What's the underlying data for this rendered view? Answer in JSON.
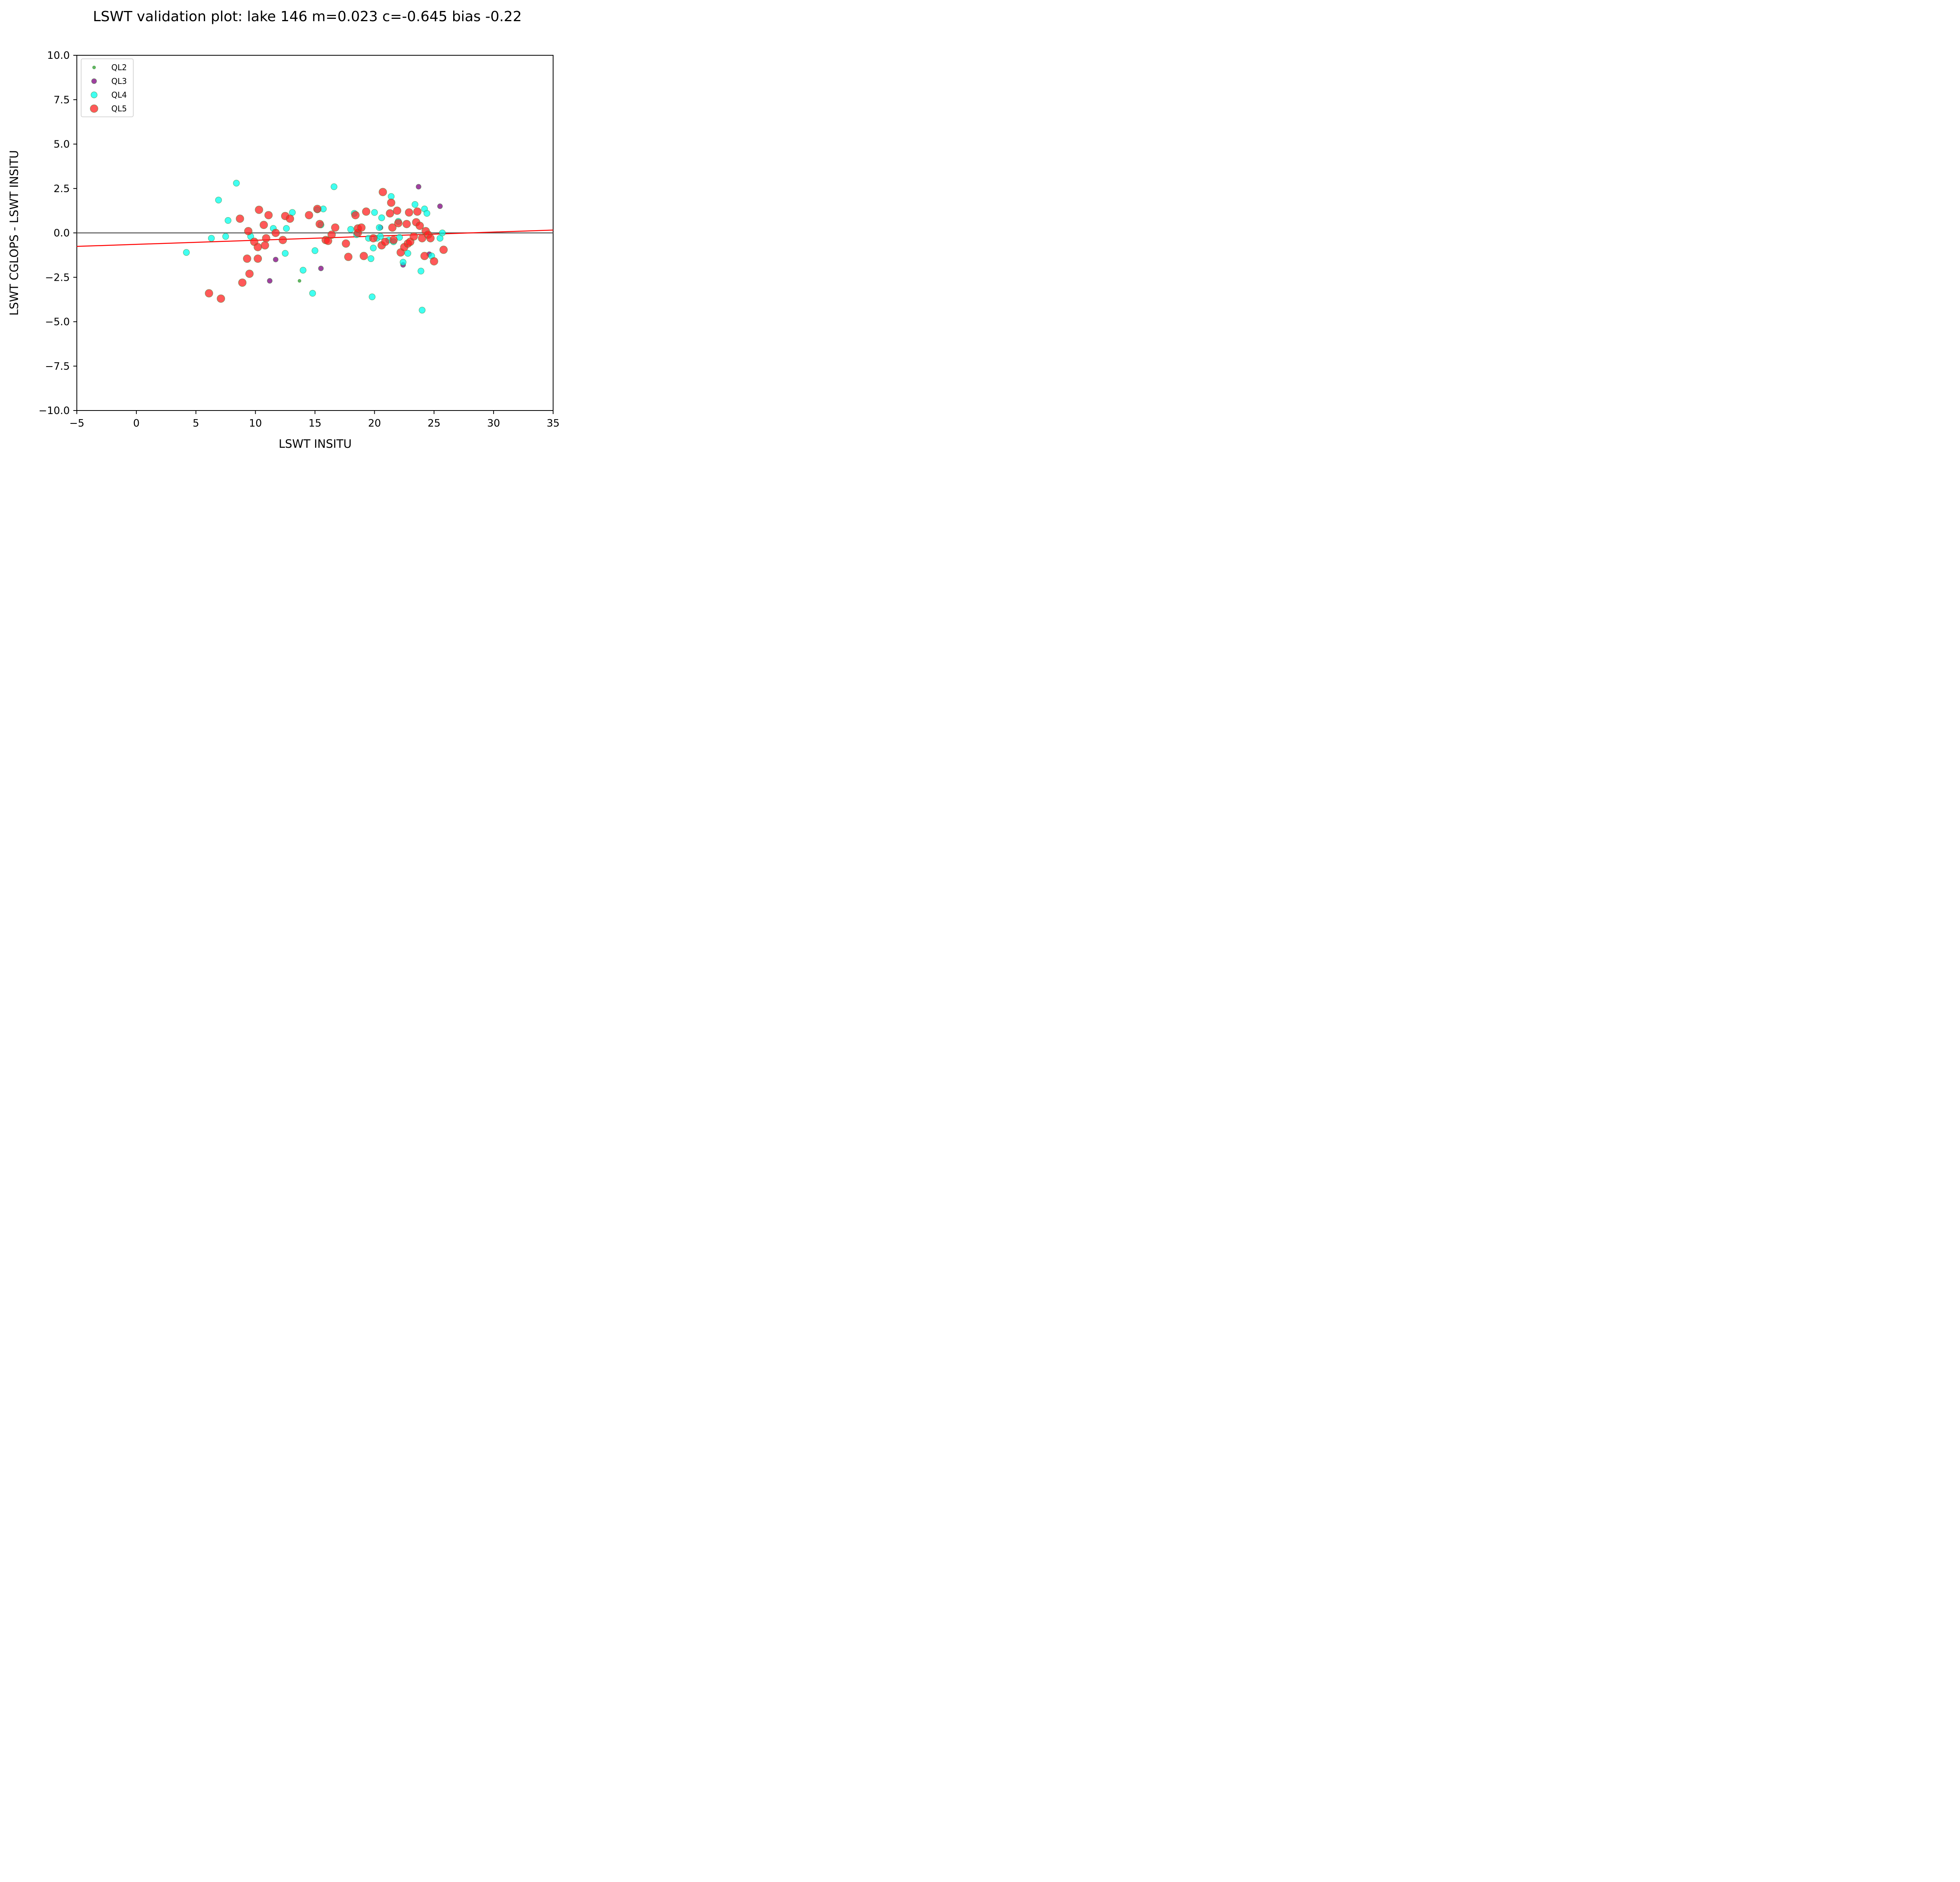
{
  "chart_data": {
    "type": "scatter",
    "title": "LSWT validation plot: lake 146 m=0.023 c=-0.645 bias -0.22",
    "xlabel": "LSWT INSITU",
    "ylabel": "LSWT CGLOPS - LSWT INSITU",
    "xlim": [
      -5,
      35
    ],
    "ylim": [
      -10,
      10
    ],
    "xticks": [
      -5,
      0,
      5,
      10,
      15,
      20,
      25,
      30,
      35
    ],
    "yticks": [
      -10,
      -7.5,
      -5,
      -2.5,
      0,
      2.5,
      5,
      7.5,
      10
    ],
    "xtick_labels": [
      "−5",
      "0",
      "5",
      "10",
      "15",
      "20",
      "25",
      "30",
      "35"
    ],
    "ytick_labels": [
      "−10.0",
      "−7.5",
      "−5.0",
      "−2.5",
      "0.0",
      "2.5",
      "5.0",
      "7.5",
      "10.0"
    ],
    "grid": false,
    "legend_position": "upper-left",
    "zero_line": {
      "y": 0,
      "color": "#555555"
    },
    "fit_line": {
      "m": 0.023,
      "c": -0.645,
      "color": "#ff0000"
    },
    "series": [
      {
        "name": "QL2",
        "color": "#2ca02c",
        "x": [
          13.7
        ],
        "y": [
          -2.7
        ]
      },
      {
        "name": "QL3",
        "color": "#800080",
        "x": [
          11.2,
          11.7,
          15.5,
          20.5,
          22.4,
          23.7,
          24.6,
          25.5
        ],
        "y": [
          -2.7,
          -1.5,
          -2.0,
          0.3,
          -1.8,
          2.6,
          -1.2,
          1.5
        ]
      },
      {
        "name": "QL4",
        "color": "#00ffee",
        "x": [
          4.2,
          6.3,
          6.9,
          7.5,
          7.7,
          8.4,
          9.6,
          11.5,
          12.5,
          12.6,
          13.1,
          14.0,
          14.8,
          15.0,
          15.2,
          15.5,
          15.7,
          16.6,
          18.0,
          18.3,
          18.5,
          19.5,
          19.7,
          19.8,
          19.9,
          20.0,
          20.2,
          20.4,
          20.5,
          20.6,
          21.2,
          21.4,
          21.6,
          22.0,
          22.1,
          22.4,
          22.8,
          23.4,
          23.9,
          24.0,
          24.2,
          24.4,
          24.8,
          25.5,
          25.7
        ],
        "y": [
          -1.1,
          -0.3,
          1.85,
          -0.2,
          0.7,
          2.8,
          -0.2,
          0.25,
          -1.15,
          0.25,
          1.15,
          -2.1,
          -3.4,
          -1.0,
          1.3,
          0.45,
          1.35,
          2.6,
          0.2,
          1.1,
          -0.1,
          -0.3,
          -1.45,
          -3.6,
          -0.85,
          1.15,
          -0.3,
          0.3,
          -0.2,
          0.85,
          -0.4,
          2.05,
          -0.5,
          0.65,
          -0.25,
          -1.65,
          -1.15,
          1.6,
          -2.15,
          -4.35,
          1.35,
          1.1,
          -1.3,
          -0.3,
          0.0
        ]
      },
      {
        "name": "QL5",
        "color": "#ff2222",
        "x": [
          6.1,
          7.1,
          8.7,
          8.9,
          9.3,
          9.4,
          9.5,
          9.9,
          10.2,
          10.2,
          10.3,
          10.7,
          10.8,
          10.9,
          11.1,
          11.7,
          12.3,
          12.5,
          12.9,
          14.5,
          15.2,
          15.4,
          15.9,
          16.1,
          16.4,
          16.7,
          17.6,
          17.8,
          18.4,
          18.6,
          18.6,
          18.9,
          19.1,
          19.3,
          19.9,
          20.6,
          20.7,
          20.9,
          21.3,
          21.4,
          21.5,
          21.6,
          21.9,
          22.0,
          22.2,
          22.5,
          22.7,
          22.8,
          22.9,
          23.0,
          23.3,
          23.5,
          23.6,
          23.8,
          24.0,
          24.2,
          24.3,
          24.5,
          24.7,
          25.0,
          25.8
        ],
        "y": [
          -3.4,
          -3.7,
          0.8,
          -2.8,
          -1.45,
          0.1,
          -2.3,
          -0.5,
          -0.8,
          -1.45,
          1.3,
          0.45,
          -0.7,
          -0.3,
          1.0,
          0.0,
          -0.4,
          0.95,
          0.8,
          1.0,
          1.35,
          0.5,
          -0.4,
          -0.45,
          -0.1,
          0.3,
          -0.6,
          -1.35,
          1.0,
          0.0,
          0.25,
          0.3,
          -1.3,
          1.2,
          -0.3,
          -0.7,
          2.3,
          -0.5,
          1.1,
          1.7,
          0.3,
          -0.4,
          1.25,
          0.55,
          -1.1,
          -0.8,
          0.5,
          -0.6,
          1.15,
          -0.5,
          -0.2,
          0.6,
          1.2,
          0.4,
          -0.3,
          -1.3,
          0.1,
          -0.1,
          -0.3,
          -1.6,
          -0.95
        ]
      }
    ]
  }
}
